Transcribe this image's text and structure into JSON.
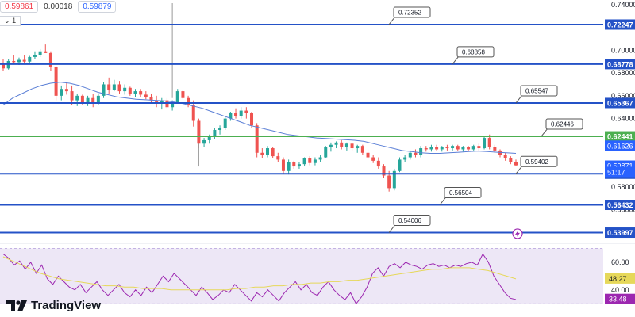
{
  "header": {
    "sell_price": "0.59861",
    "spread": "0.00018",
    "buy_price": "0.59879",
    "lot_label": "1"
  },
  "branding": {
    "name": "TradingView"
  },
  "colors": {
    "up": "#26a69a",
    "down": "#ef5350",
    "level_blue": "#2452c7",
    "level_green": "#4caf50",
    "ma": "#5b7fd6",
    "rsi": "#9c27b0",
    "rsi_ma": "#e6d85a",
    "rsi_band": "#ede7f6"
  },
  "chart_data": [
    {
      "type": "candlestick",
      "price_axis": {
        "ylim": [
          0.532,
          0.744
        ],
        "ticks": [
          "0.74000",
          "0.72000",
          "0.70000",
          "0.68000",
          "0.66000",
          "0.64000",
          "0.62000",
          "0.60000",
          "0.58000",
          "0.56000",
          "0.54000"
        ]
      },
      "horizontal_levels": [
        {
          "value": 0.72247,
          "label": "0.72247",
          "color": "blue"
        },
        {
          "value": 0.68778,
          "label": "0.68778",
          "color": "blue"
        },
        {
          "value": 0.65367,
          "label": "0.65367",
          "color": "blue"
        },
        {
          "value": 0.62441,
          "label": "0.62441",
          "color": "green"
        },
        {
          "value": 0.5916,
          "label": "0.59160",
          "color": "blue"
        },
        {
          "value": 0.56432,
          "label": "0.56432",
          "color": "blue"
        },
        {
          "value": 0.53997,
          "label": "0.53997",
          "color": "blue"
        }
      ],
      "price_tags": [
        {
          "value": 0.61626,
          "label": "0.61626",
          "color": "#2962ff"
        },
        {
          "value": 0.59871,
          "label": "0.59871",
          "color": "#2962ff"
        },
        {
          "value": 0.5932,
          "label": "51:17",
          "color": "#2962ff"
        }
      ],
      "callouts": [
        {
          "label": "0.72352",
          "value": 0.72247,
          "at": 0.62
        },
        {
          "label": "0.68858",
          "value": 0.68778,
          "at": 0.72
        },
        {
          "label": "0.65547",
          "value": 0.65367,
          "at": 0.82
        },
        {
          "label": "0.62446",
          "value": 0.62441,
          "at": 0.86
        },
        {
          "label": "0.59402",
          "value": 0.5916,
          "at": 0.82
        },
        {
          "label": "0.56504",
          "value": 0.56432,
          "at": 0.7
        },
        {
          "label": "0.54006",
          "value": 0.53997,
          "at": 0.62
        }
      ],
      "candles": [
        [
          0.6885,
          0.692,
          0.682,
          0.684
        ],
        [
          0.684,
          0.692,
          0.683,
          0.6905
        ],
        [
          0.6905,
          0.696,
          0.688,
          0.6895
        ],
        [
          0.6895,
          0.6935,
          0.687,
          0.6915
        ],
        [
          0.6915,
          0.6955,
          0.689,
          0.69
        ],
        [
          0.69,
          0.695,
          0.689,
          0.694
        ],
        [
          0.694,
          0.699,
          0.692,
          0.6955
        ],
        [
          0.6955,
          0.701,
          0.694,
          0.699
        ],
        [
          0.699,
          0.705,
          0.6975,
          0.6975
        ],
        [
          0.6975,
          0.699,
          0.682,
          0.685
        ],
        [
          0.685,
          0.686,
          0.656,
          0.66
        ],
        [
          0.66,
          0.669,
          0.656,
          0.666
        ],
        [
          0.666,
          0.671,
          0.661,
          0.664
        ],
        [
          0.664,
          0.669,
          0.652,
          0.656
        ],
        [
          0.656,
          0.662,
          0.651,
          0.66
        ],
        [
          0.66,
          0.661,
          0.652,
          0.654
        ],
        [
          0.654,
          0.66,
          0.651,
          0.658
        ],
        [
          0.658,
          0.662,
          0.65,
          0.653
        ],
        [
          0.653,
          0.662,
          0.652,
          0.66
        ],
        [
          0.66,
          0.672,
          0.658,
          0.67
        ],
        [
          0.67,
          0.676,
          0.662,
          0.665
        ],
        [
          0.665,
          0.674,
          0.664,
          0.67
        ],
        [
          0.67,
          0.673,
          0.662,
          0.664
        ],
        [
          0.664,
          0.67,
          0.661,
          0.667
        ],
        [
          0.667,
          0.668,
          0.66,
          0.662
        ],
        [
          0.662,
          0.666,
          0.659,
          0.664
        ],
        [
          0.664,
          0.666,
          0.659,
          0.661
        ],
        [
          0.661,
          0.664,
          0.657,
          0.659
        ],
        [
          0.659,
          0.662,
          0.654,
          0.656
        ],
        [
          0.656,
          0.66,
          0.65,
          0.653
        ],
        [
          0.653,
          0.658,
          0.648,
          0.656
        ],
        [
          0.656,
          0.658,
          0.648,
          0.65
        ],
        [
          0.65,
          0.656,
          0.647,
          0.654
        ],
        [
          0.654,
          0.666,
          0.653,
          0.664
        ],
        [
          0.664,
          0.665,
          0.657,
          0.658
        ],
        [
          0.658,
          0.66,
          0.65,
          0.652
        ],
        [
          0.652,
          0.656,
          0.633,
          0.638
        ],
        [
          0.638,
          0.64,
          0.614,
          0.618
        ],
        [
          0.618,
          0.623,
          0.615,
          0.621
        ],
        [
          0.621,
          0.626,
          0.618,
          0.624
        ],
        [
          0.624,
          0.632,
          0.622,
          0.63
        ],
        [
          0.63,
          0.634,
          0.626,
          0.632
        ],
        [
          0.632,
          0.642,
          0.63,
          0.64
        ],
        [
          0.64,
          0.646,
          0.638,
          0.645
        ],
        [
          0.645,
          0.649,
          0.64,
          0.642
        ],
        [
          0.642,
          0.65,
          0.64,
          0.647
        ],
        [
          0.647,
          0.65,
          0.64,
          0.645
        ],
        [
          0.645,
          0.646,
          0.632,
          0.634
        ],
        [
          0.634,
          0.636,
          0.606,
          0.61
        ],
        [
          0.61,
          0.614,
          0.605,
          0.608
        ],
        [
          0.608,
          0.616,
          0.606,
          0.614
        ],
        [
          0.614,
          0.615,
          0.605,
          0.607
        ],
        [
          0.607,
          0.61,
          0.602,
          0.604
        ],
        [
          0.604,
          0.606,
          0.592,
          0.594
        ],
        [
          0.594,
          0.604,
          0.591,
          0.602
        ],
        [
          0.602,
          0.603,
          0.596,
          0.598
        ],
        [
          0.598,
          0.602,
          0.596,
          0.6
        ],
        [
          0.6,
          0.606,
          0.598,
          0.605
        ],
        [
          0.605,
          0.607,
          0.599,
          0.601
        ],
        [
          0.601,
          0.606,
          0.599,
          0.604
        ],
        [
          0.604,
          0.608,
          0.602,
          0.606
        ],
        [
          0.606,
          0.616,
          0.605,
          0.615
        ],
        [
          0.615,
          0.619,
          0.611,
          0.617
        ],
        [
          0.617,
          0.62,
          0.614,
          0.619
        ],
        [
          0.619,
          0.621,
          0.613,
          0.615
        ],
        [
          0.615,
          0.619,
          0.612,
          0.618
        ],
        [
          0.618,
          0.619,
          0.612,
          0.614
        ],
        [
          0.614,
          0.617,
          0.61,
          0.616
        ],
        [
          0.616,
          0.617,
          0.608,
          0.61
        ],
        [
          0.61,
          0.613,
          0.604,
          0.606
        ],
        [
          0.606,
          0.608,
          0.601,
          0.603
        ],
        [
          0.603,
          0.606,
          0.596,
          0.598
        ],
        [
          0.598,
          0.6,
          0.588,
          0.59
        ],
        [
          0.59,
          0.594,
          0.576,
          0.579
        ],
        [
          0.579,
          0.596,
          0.577,
          0.594
        ],
        [
          0.594,
          0.606,
          0.593,
          0.604
        ],
        [
          0.604,
          0.608,
          0.602,
          0.606
        ],
        [
          0.606,
          0.612,
          0.604,
          0.61
        ],
        [
          0.61,
          0.613,
          0.606,
          0.608
        ],
        [
          0.608,
          0.616,
          0.606,
          0.614
        ],
        [
          0.614,
          0.616,
          0.611,
          0.613
        ],
        [
          0.613,
          0.617,
          0.611,
          0.615
        ],
        [
          0.615,
          0.617,
          0.612,
          0.613
        ],
        [
          0.613,
          0.616,
          0.611,
          0.615
        ],
        [
          0.615,
          0.617,
          0.612,
          0.614
        ],
        [
          0.614,
          0.617,
          0.612,
          0.616
        ],
        [
          0.616,
          0.617,
          0.612,
          0.613
        ],
        [
          0.613,
          0.616,
          0.611,
          0.615
        ],
        [
          0.615,
          0.616,
          0.611,
          0.613
        ],
        [
          0.613,
          0.617,
          0.612,
          0.616
        ],
        [
          0.616,
          0.618,
          0.612,
          0.614
        ],
        [
          0.614,
          0.625,
          0.613,
          0.623
        ],
        [
          0.623,
          0.626,
          0.613,
          0.615
        ],
        [
          0.615,
          0.617,
          0.61,
          0.612
        ],
        [
          0.612,
          0.613,
          0.606,
          0.608
        ],
        [
          0.608,
          0.61,
          0.603,
          0.605
        ],
        [
          0.605,
          0.607,
          0.6,
          0.602
        ],
        [
          0.602,
          0.604,
          0.598,
          0.599
        ]
      ],
      "ma_line": [
        0.652,
        0.658,
        0.662,
        0.666,
        0.669,
        0.671,
        0.672,
        0.671,
        0.669,
        0.666,
        0.663,
        0.661,
        0.659,
        0.658,
        0.657,
        0.6565,
        0.656,
        0.6555,
        0.6545,
        0.653,
        0.651,
        0.649,
        0.646,
        0.643,
        0.64,
        0.637,
        0.634,
        0.632,
        0.63,
        0.628,
        0.626,
        0.625,
        0.624,
        0.623,
        0.6225,
        0.622,
        0.6215,
        0.621,
        0.62,
        0.618,
        0.616,
        0.614,
        0.612,
        0.611,
        0.61,
        0.6095,
        0.6095,
        0.61,
        0.6105,
        0.611,
        0.6115,
        0.611,
        0.6105,
        0.61,
        0.6095
      ]
    },
    {
      "type": "line",
      "ylim": [
        25,
        72
      ],
      "ticks": [
        "60.00",
        "40.00"
      ],
      "band": [
        30,
        70
      ],
      "current": [
        {
          "value": 48.27,
          "label": "48.27",
          "color": "#e6d85a"
        },
        {
          "value": 33.48,
          "label": "33.48",
          "color": "#9c27b0"
        }
      ],
      "series": [
        {
          "values": [
            66,
            63,
            58,
            61,
            55,
            60,
            52,
            58,
            48,
            44,
            50,
            46,
            42,
            40,
            44,
            38,
            42,
            46,
            40,
            36,
            40,
            44,
            38,
            35,
            40,
            36,
            42,
            38,
            44,
            50,
            46,
            52,
            48,
            44,
            40,
            36,
            42,
            38,
            33,
            36,
            40,
            38,
            44,
            40,
            36,
            32,
            38,
            35,
            40,
            36,
            32,
            38,
            42,
            46,
            40,
            44,
            38,
            36,
            42,
            46,
            40,
            36,
            33,
            38,
            30,
            35,
            42,
            52,
            56,
            50,
            57,
            59,
            56,
            60,
            58,
            57,
            55,
            58,
            59,
            57,
            58,
            56,
            58,
            57,
            59,
            60,
            58,
            66,
            60,
            50,
            44,
            38,
            34,
            33
          ],
          "color": "#9c27b0"
        },
        {
          "values": [
            64,
            61,
            58,
            55,
            52,
            50,
            48,
            47,
            46,
            45,
            44,
            43,
            43,
            42,
            42,
            41,
            41,
            41,
            40,
            40,
            40,
            40,
            40,
            40,
            40,
            41,
            41,
            42,
            42,
            43,
            43,
            44,
            44,
            45,
            45,
            46,
            46,
            47,
            47,
            48,
            49,
            50,
            51,
            52,
            53,
            54,
            55,
            55,
            56,
            56,
            56,
            55,
            54,
            52,
            50,
            48
          ],
          "color": "#e6d85a"
        }
      ]
    }
  ]
}
